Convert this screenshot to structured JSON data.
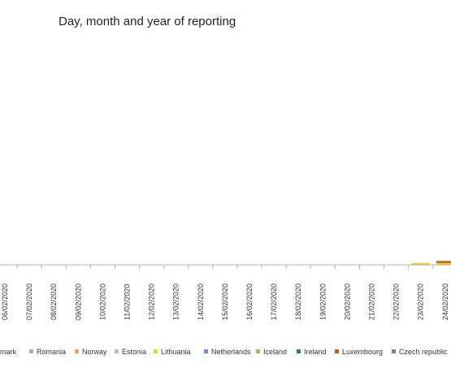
{
  "chart_data": {
    "type": "bar",
    "stacked": true,
    "title": "Day, month and year of reporting",
    "x": [
      "06/02/2020",
      "07/02/2020",
      "08/02/2020",
      "09/02/2020",
      "10/02/2020",
      "11/02/2020",
      "12/02/2020",
      "13/02/2020",
      "14/02/2020",
      "15/02/2020",
      "16/02/2020",
      "17/02/2020",
      "18/02/2020",
      "19/02/2020",
      "20/02/2020",
      "21/02/2020",
      "22/02/2020",
      "23/02/2020",
      "24/02/2020"
    ],
    "series": [
      {
        "name": "Denmark",
        "label": "nmark",
        "color": "#3f6fb0",
        "values": [
          0,
          0,
          0,
          0,
          0,
          0,
          0,
          0,
          0,
          0,
          0,
          0,
          0,
          0,
          0,
          0,
          0,
          0,
          0
        ]
      },
      {
        "name": "Romania",
        "label": "Romania",
        "color": "#8fb4dc",
        "values": [
          0,
          0,
          0,
          0,
          0,
          0,
          0,
          0,
          0,
          0,
          0,
          0,
          0,
          0,
          0,
          0,
          0,
          0,
          0
        ]
      },
      {
        "name": "Norway",
        "label": "Norway",
        "color": "#f4a25b",
        "values": [
          0,
          0,
          0,
          0,
          0,
          0,
          0,
          0,
          0,
          0,
          0,
          0,
          0,
          0,
          0,
          0,
          0,
          0,
          0
        ]
      },
      {
        "name": "Estonia",
        "label": "Estonia",
        "color": "#bfbfbf",
        "values": [
          0,
          0,
          0,
          0,
          0,
          0,
          0,
          0,
          0,
          0,
          0,
          0,
          0,
          0,
          0,
          0,
          0,
          0,
          0
        ]
      },
      {
        "name": "Lithuania",
        "label": "Lithuania",
        "color": "#ffc728",
        "values": [
          0,
          0,
          0,
          0,
          0,
          0,
          0,
          0,
          0,
          0,
          0,
          0,
          0,
          0,
          0,
          0,
          0,
          1,
          1
        ]
      },
      {
        "name": "Netherlands",
        "label": "Netherlands",
        "color": "#6a8fcc",
        "values": [
          0,
          0,
          0,
          0,
          0,
          0,
          0,
          0,
          0,
          0,
          0,
          0,
          0,
          0,
          0,
          0,
          0,
          0,
          0
        ]
      },
      {
        "name": "Iceland",
        "label": "Iceland",
        "color": "#8cc168",
        "values": [
          0,
          0,
          0,
          0,
          0,
          0,
          0,
          0,
          0,
          0,
          0,
          0,
          0,
          0,
          0,
          0,
          0,
          0,
          0
        ]
      },
      {
        "name": "Ireland",
        "label": "Ireland",
        "color": "#2e75b6",
        "values": [
          0,
          0,
          0,
          0,
          0,
          0,
          0,
          0,
          0,
          0,
          0,
          0,
          0,
          0,
          0,
          0,
          0,
          0,
          0
        ]
      },
      {
        "name": "Luxembourg",
        "label": "Luxembourg",
        "color": "#c55a11",
        "values": [
          0,
          0,
          0,
          0,
          0,
          0,
          0,
          0,
          0,
          0,
          0,
          0,
          0,
          0,
          0,
          0,
          0,
          0,
          1
        ]
      },
      {
        "name": "Czech republic",
        "label": "Czech republic",
        "color": "#7f7f7f",
        "values": [
          0,
          0,
          0,
          0,
          0,
          0,
          0,
          0,
          0,
          0,
          0,
          0,
          0,
          0,
          0,
          0,
          0,
          0,
          0
        ]
      }
    ],
    "ylim": [
      0,
      120
    ],
    "grid": false,
    "legend_position": "bottom"
  }
}
